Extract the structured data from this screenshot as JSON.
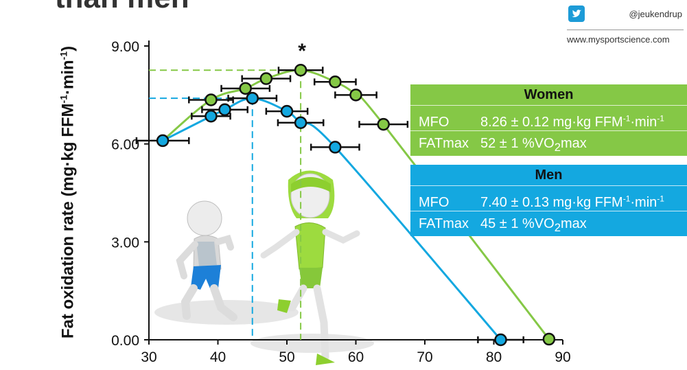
{
  "slide": {
    "title_fragment": "than men"
  },
  "branding": {
    "handle": "@jeukendrup",
    "website": "www.mysportscience.com"
  },
  "colors": {
    "women": "#85c846",
    "men": "#14a8e0",
    "text": "#111111"
  },
  "chart_data": {
    "type": "scatter",
    "title": "",
    "xlabel": "",
    "ylabel": "Fat oxidation rate (mg·kg FFM⁻¹·min⁻¹)",
    "xlim": [
      30,
      90
    ],
    "ylim": [
      0,
      9
    ],
    "x_ticks": [
      30,
      40,
      50,
      60,
      70,
      80,
      90
    ],
    "x_tick_labels": [
      "30",
      "40",
      "50",
      "60",
      "70",
      "80",
      "90"
    ],
    "y_ticks": [
      0,
      3,
      6,
      9
    ],
    "y_tick_labels": [
      "0.00",
      "3.00",
      "6.00",
      "9.00"
    ],
    "grid": false,
    "annotation": "*",
    "series": [
      {
        "name": "Women",
        "color": "#85c846",
        "x": [
          39,
          44,
          47,
          52,
          57,
          60,
          64,
          88
        ],
        "y": [
          7.35,
          7.7,
          8.0,
          8.26,
          7.9,
          7.5,
          6.6,
          0.02
        ],
        "x_err": [
          3.2,
          3.5,
          3.5,
          3.2,
          3.0,
          3.0,
          3.5,
          0
        ],
        "curve_x": [
          32,
          39,
          44,
          47,
          52,
          57,
          60,
          64,
          88
        ],
        "curve_y": [
          6.1,
          7.35,
          7.7,
          8.0,
          8.26,
          7.9,
          7.5,
          6.6,
          0.02
        ],
        "peak": {
          "x": 52,
          "y": 8.26
        }
      },
      {
        "name": "Men",
        "color": "#14a8e0",
        "x": [
          32,
          39,
          41,
          45,
          50,
          52,
          57,
          81
        ],
        "y": [
          6.1,
          6.85,
          7.05,
          7.4,
          7.0,
          6.65,
          5.9,
          0.0
        ],
        "x_err": [
          3.8,
          2.8,
          3.3,
          3.5,
          3.0,
          3.3,
          3.5,
          3.3
        ],
        "curve_x": [
          32,
          39,
          41,
          45,
          50,
          52,
          57,
          81
        ],
        "curve_y": [
          6.1,
          6.85,
          7.05,
          7.4,
          7.0,
          6.65,
          5.9,
          0.0
        ],
        "peak": {
          "x": 45,
          "y": 7.4
        }
      }
    ]
  },
  "women_panel": {
    "title": "Women",
    "mfo_label": "MFO",
    "mfo_value": "8.26 ± 0.12 mg·kg FFM",
    "mfo_exp1": "-1",
    "mfo_mid": "·min",
    "mfo_exp2": "-1",
    "fatmax_label": "FATmax",
    "fatmax_value": "52 ± 1 %VO",
    "fatmax_sub": "2",
    "fatmax_suffix": "max"
  },
  "men_panel": {
    "title": "Men",
    "mfo_label": "MFO",
    "mfo_value": "7.40 ± 0.13 mg·kg FFM",
    "mfo_exp1": "-1",
    "mfo_mid": "·min",
    "mfo_exp2": "-1",
    "fatmax_label": "FATmax",
    "fatmax_value": "45 ± 1 %VO",
    "fatmax_sub": "2",
    "fatmax_suffix": "max"
  }
}
